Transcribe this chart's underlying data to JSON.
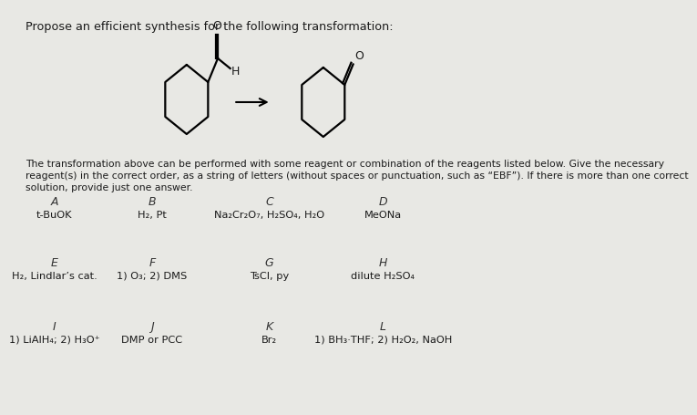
{
  "title": "Propose an efficient synthesis for the following transformation:",
  "description_line1": "The transformation above can be performed with some reagent or combination of the reagents listed below. Give the necessary",
  "description_line2": "reagent(s) in the correct order, as a string of letters (without spaces or punctuation, such as “EBF”). If there is more than one correct",
  "description_line3": "solution, provide just one answer.",
  "reagents": [
    {
      "label": "A",
      "text": "t-BuOK"
    },
    {
      "label": "B",
      "text": "H₂, Pt"
    },
    {
      "label": "C",
      "text": "Na₂Cr₂O₇, H₂SO₄, H₂O"
    },
    {
      "label": "D",
      "text": "MeONa"
    },
    {
      "label": "E",
      "text": "H₂, Lindlar’s cat."
    },
    {
      "label": "F",
      "text": "1) O₃; 2) DMS"
    },
    {
      "label": "G",
      "text": "TsCl, py"
    },
    {
      "label": "H",
      "text": "dilute H₂SO₄"
    },
    {
      "label": "I",
      "text": "1) LiAlH₄; 2) H₃O⁺"
    },
    {
      "label": "J",
      "text": "DMP or PCC"
    },
    {
      "label": "K",
      "text": "Br₂"
    },
    {
      "label": "L",
      "text": "1) BH₃·THF; 2) H₂O₂, NaOH"
    }
  ],
  "bg_color": "#e8e8e4",
  "text_color": "#1a1a1a",
  "label_color": "#333333"
}
